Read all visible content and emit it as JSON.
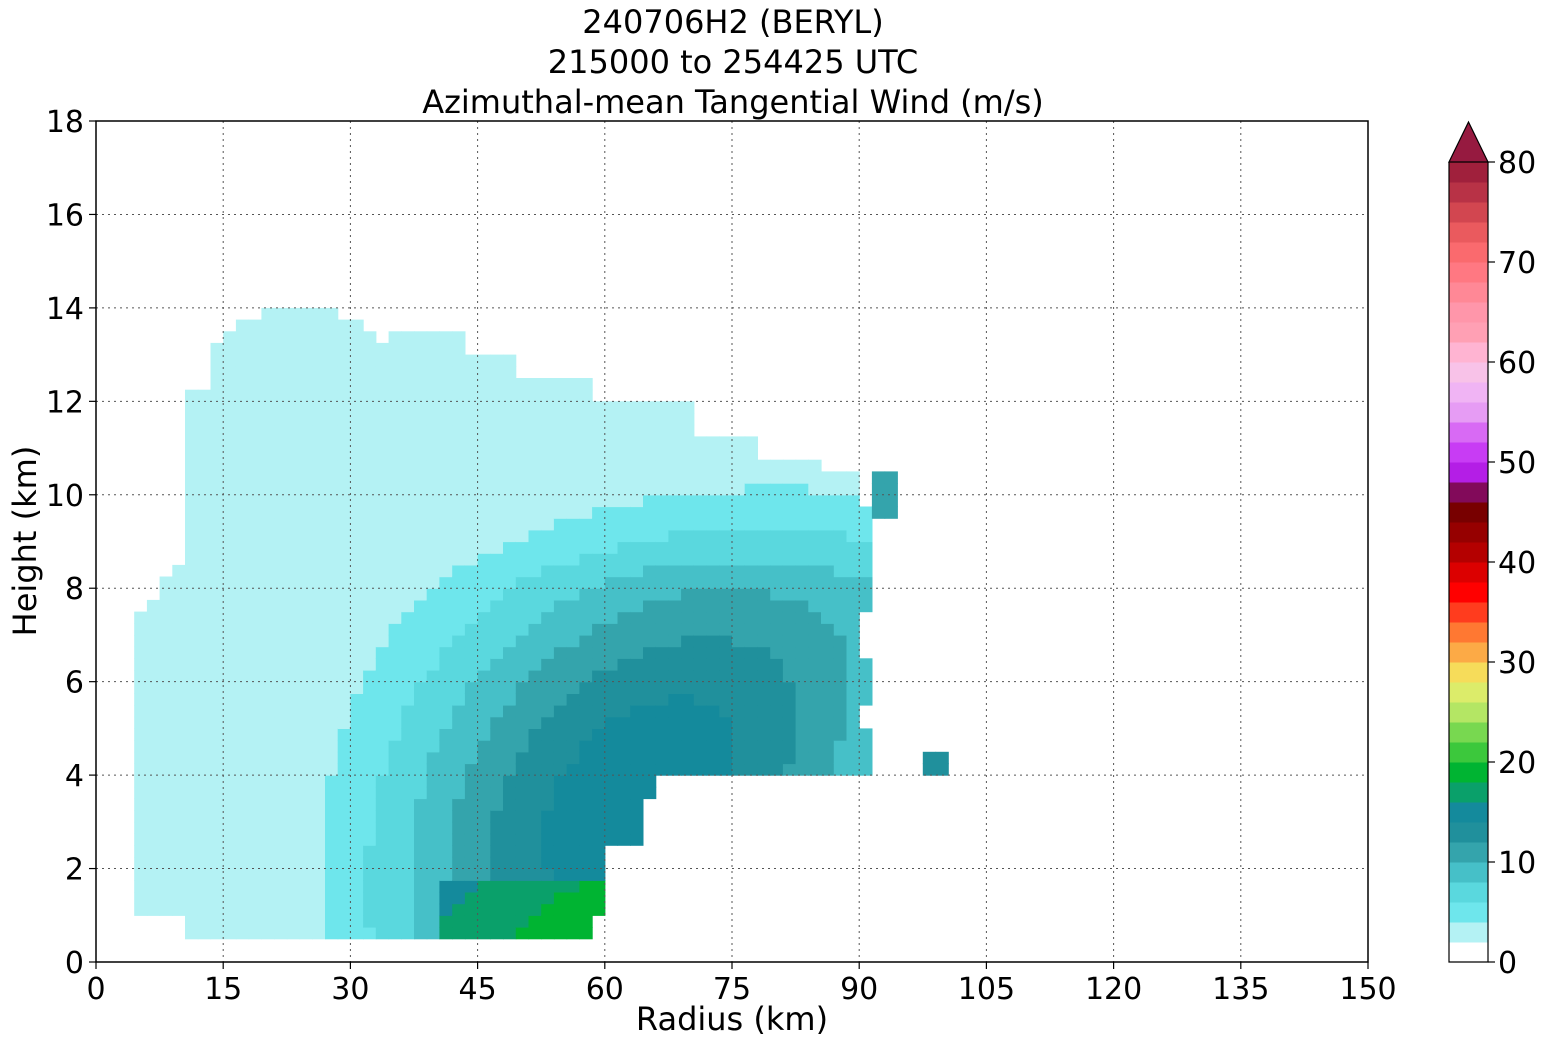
{
  "title_lines": [
    "240706H2 (BERYL)",
    "215000 to 254425 UTC",
    "Azimuthal-mean Tangential Wind (m/s)"
  ],
  "chart_data": {
    "type": "heatmap",
    "title": "240706H2 (BERYL) / 215000 to 254425 UTC / Azimuthal-mean Tangential Wind (m/s)",
    "xlabel": "Radius (km)",
    "ylabel": "Height (km)",
    "xlim": [
      0,
      150
    ],
    "ylim": [
      0,
      18
    ],
    "xticks": [
      0,
      15,
      30,
      45,
      60,
      75,
      90,
      105,
      120,
      135,
      150
    ],
    "yticks": [
      0,
      2,
      4,
      6,
      8,
      10,
      12,
      14,
      16,
      18
    ],
    "grid": true,
    "colorbar": {
      "ticks": [
        0,
        10,
        20,
        30,
        40,
        50,
        60,
        70,
        80
      ],
      "extend": "max",
      "levels": [
        {
          "from": 0,
          "to": 2,
          "color": "#ffffff"
        },
        {
          "from": 2,
          "to": 4,
          "color": "#b4f2f4"
        },
        {
          "from": 4,
          "to": 6,
          "color": "#6ee6ec"
        },
        {
          "from": 6,
          "to": 8,
          "color": "#5ad8de"
        },
        {
          "from": 8,
          "to": 10,
          "color": "#46c0c8"
        },
        {
          "from": 10,
          "to": 12,
          "color": "#34a4ac"
        },
        {
          "from": 12,
          "to": 14,
          "color": "#20909c"
        },
        {
          "from": 14,
          "to": 16,
          "color": "#148a9c"
        },
        {
          "from": 16,
          "to": 18,
          "color": "#0aa06a"
        },
        {
          "from": 18,
          "to": 20,
          "color": "#00b432"
        },
        {
          "from": 20,
          "to": 22,
          "color": "#3cc83c"
        },
        {
          "from": 22,
          "to": 24,
          "color": "#78d850"
        },
        {
          "from": 24,
          "to": 26,
          "color": "#b4e664"
        },
        {
          "from": 26,
          "to": 28,
          "color": "#dcec6a"
        },
        {
          "from": 28,
          "to": 30,
          "color": "#f6dc5a"
        },
        {
          "from": 30,
          "to": 32,
          "color": "#fcaa46"
        },
        {
          "from": 32,
          "to": 34,
          "color": "#ff7832"
        },
        {
          "from": 34,
          "to": 36,
          "color": "#ff3c1e"
        },
        {
          "from": 36,
          "to": 38,
          "color": "#ff0000"
        },
        {
          "from": 38,
          "to": 40,
          "color": "#dc0000"
        },
        {
          "from": 40,
          "to": 42,
          "color": "#b40000"
        },
        {
          "from": 42,
          "to": 44,
          "color": "#960000"
        },
        {
          "from": 44,
          "to": 46,
          "color": "#780000"
        },
        {
          "from": 46,
          "to": 48,
          "color": "#820a5a"
        },
        {
          "from": 48,
          "to": 50,
          "color": "#b41ee6"
        },
        {
          "from": 50,
          "to": 52,
          "color": "#c83cf4"
        },
        {
          "from": 52,
          "to": 54,
          "color": "#d86af4"
        },
        {
          "from": 54,
          "to": 56,
          "color": "#e69cf4"
        },
        {
          "from": 56,
          "to": 58,
          "color": "#f0b4f4"
        },
        {
          "from": 58,
          "to": 60,
          "color": "#f8c2e8"
        },
        {
          "from": 60,
          "to": 62,
          "color": "#ffb4d2"
        },
        {
          "from": 62,
          "to": 64,
          "color": "#ffa0b4"
        },
        {
          "from": 64,
          "to": 66,
          "color": "#ff96aa"
        },
        {
          "from": 66,
          "to": 68,
          "color": "#ff8896"
        },
        {
          "from": 68,
          "to": 70,
          "color": "#ff7882"
        },
        {
          "from": 70,
          "to": 72,
          "color": "#fa6a6e"
        },
        {
          "from": 72,
          "to": 74,
          "color": "#ea5a5e"
        },
        {
          "from": 74,
          "to": 76,
          "color": "#d24650"
        },
        {
          "from": 76,
          "to": 78,
          "color": "#b83246"
        },
        {
          "from": 78,
          "to": 80,
          "color": "#a0203c"
        },
        {
          "from": 80,
          "to": 82,
          "color": "#961a40"
        }
      ]
    },
    "contour_regions": [
      {
        "level": "2-4",
        "color": "#b4f2f4",
        "points": [
          [
            4,
            1
          ],
          [
            5,
            1
          ],
          [
            5,
            3.3
          ],
          [
            4,
            3.5
          ],
          [
            4,
            4.6
          ],
          [
            4.2,
            7.3
          ],
          [
            6,
            8
          ],
          [
            9,
            8.6
          ],
          [
            10,
            9
          ],
          [
            11,
            10
          ],
          [
            13,
            11.2
          ],
          [
            10.5,
            12.3
          ],
          [
            11,
            12.5
          ],
          [
            15,
            13
          ],
          [
            19,
            13.3
          ],
          [
            24,
            13.8
          ],
          [
            27,
            14
          ],
          [
            30,
            14
          ],
          [
            32,
            13.8
          ],
          [
            35,
            13.4
          ],
          [
            44,
            13.4
          ],
          [
            44,
            12.8
          ],
          [
            34,
            12.8
          ],
          [
            32,
            13
          ],
          [
            27,
            12.6
          ],
          [
            24,
            12.6
          ],
          [
            22,
            12.4
          ],
          [
            16,
            12.2
          ],
          [
            14,
            11.5
          ],
          [
            13,
            10
          ],
          [
            12,
            9
          ],
          [
            12,
            8
          ],
          [
            7,
            7.5
          ],
          [
            6,
            6.5
          ],
          [
            6,
            5
          ],
          [
            6,
            4
          ],
          [
            5,
            3
          ],
          [
            5,
            1
          ]
        ],
        "comment": "outer light-cyan ring, approximated as envelope"
      },
      {
        "level": "14-16",
        "color": "#148a9c",
        "points": [
          [
            20,
            0.5
          ],
          [
            41,
            0.5
          ],
          [
            42,
            1.3
          ],
          [
            55,
            2.2
          ],
          [
            60,
            2.5
          ],
          [
            64,
            3.5
          ],
          [
            66,
            4
          ],
          [
            72,
            4
          ],
          [
            80,
            4.5
          ],
          [
            86,
            5.5
          ],
          [
            88,
            6.5
          ],
          [
            86,
            7.8
          ],
          [
            78,
            8.3
          ],
          [
            70,
            8
          ],
          [
            62,
            7.5
          ],
          [
            50,
            6.8
          ],
          [
            42,
            6.3
          ],
          [
            36,
            5.8
          ],
          [
            30,
            5
          ],
          [
            26,
            4
          ],
          [
            22,
            3
          ],
          [
            20,
            2
          ],
          [
            19,
            1
          ]
        ]
      }
    ],
    "notes": "Filled contour plot of azimuthal-mean tangential wind vs radius and height; values estimated from color levels, roughly 2-20 m/s with maximum near 14-16 m/s at 45-85 km radius, 1-8 km height."
  }
}
